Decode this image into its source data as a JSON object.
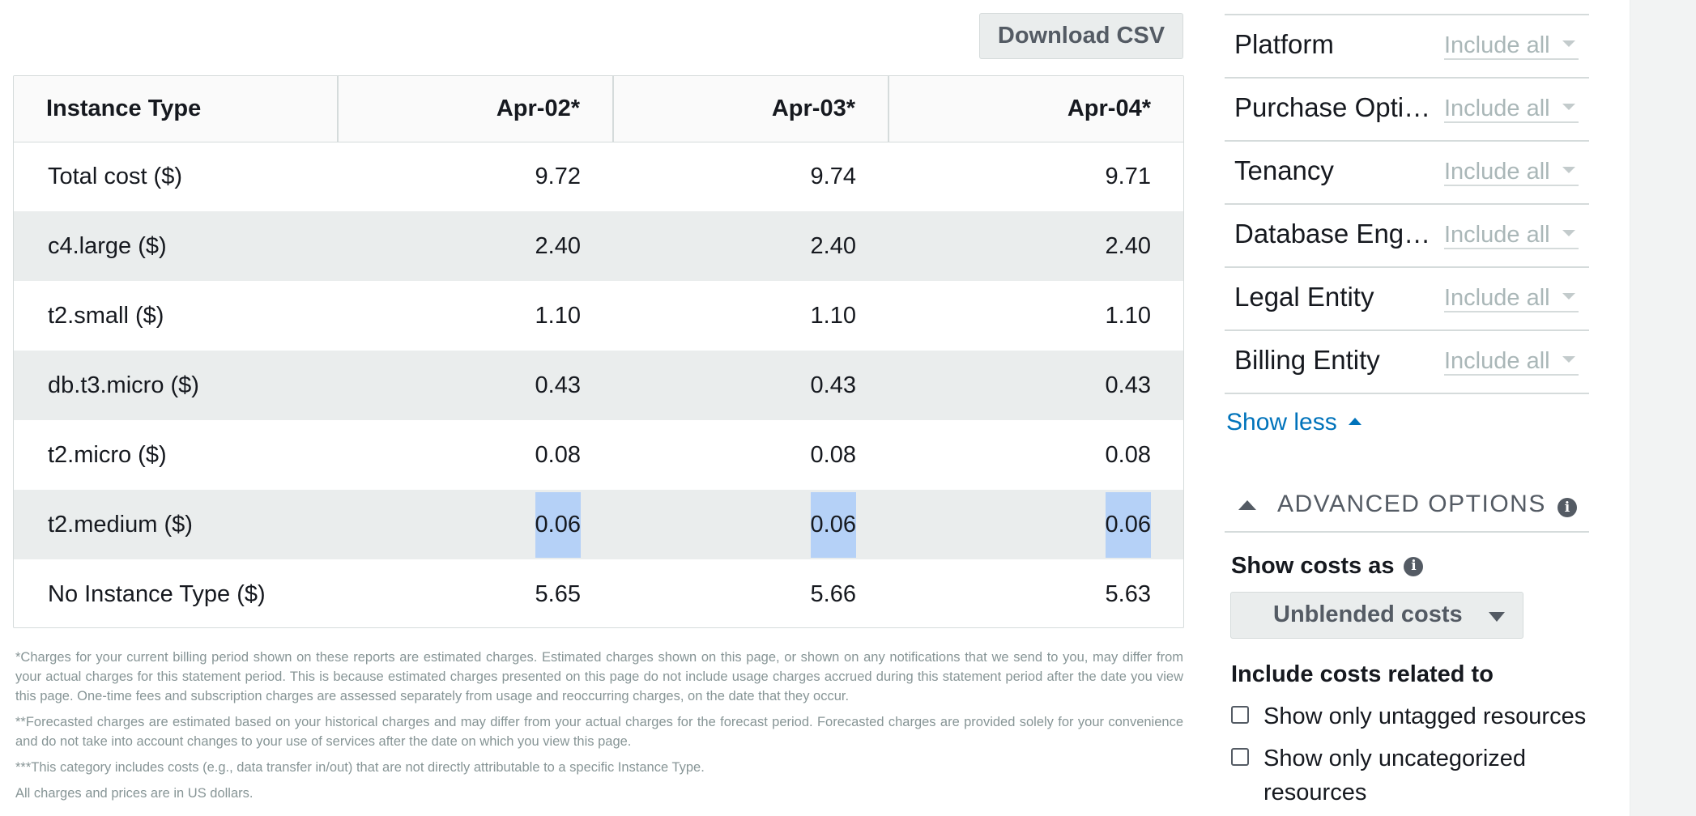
{
  "toolbar": {
    "download_label": "Download CSV"
  },
  "table": {
    "headers": [
      "Instance Type",
      "Apr-02*",
      "Apr-03*",
      "Apr-04*"
    ],
    "rows": [
      {
        "label": "Total cost ($)",
        "values": [
          "9.72",
          "9.74",
          "9.71"
        ]
      },
      {
        "label": "c4.large ($)",
        "values": [
          "2.40",
          "2.40",
          "2.40"
        ]
      },
      {
        "label": "t2.small ($)",
        "values": [
          "1.10",
          "1.10",
          "1.10"
        ]
      },
      {
        "label": "db.t3.micro ($)",
        "values": [
          "0.43",
          "0.43",
          "0.43"
        ]
      },
      {
        "label": "t2.micro ($)",
        "values": [
          "0.08",
          "0.08",
          "0.08"
        ]
      },
      {
        "label": "t2.medium ($)",
        "values": [
          "0.06",
          "0.06",
          "0.06"
        ]
      },
      {
        "label": "No Instance Type ($)",
        "values": [
          "5.65",
          "5.66",
          "5.63"
        ]
      }
    ]
  },
  "footnotes": {
    "n1": "*Charges for your current billing period shown on these reports are estimated charges. Estimated charges shown on this page, or shown on any notifications that we send to you, may differ from your actual charges for this statement period. This is because estimated charges presented on this page do not include usage charges accrued during this statement period after the date you view this page. One-time fees and subscription charges are assessed separately from usage and reoccurring charges, on the date that they occur.",
    "n2": "**Forecasted charges are estimated based on your historical charges and may differ from your actual charges for the forecast period. Forecasted charges are provided solely for your convenience and do not take into account changes to your use of services after the date on which you view this page.",
    "n3": "***This category includes costs (e.g., data transfer in/out) that are not directly attributable to a specific Instance Type.",
    "n4": "All charges and prices are in US dollars."
  },
  "filters": {
    "items": [
      {
        "name": "Platform",
        "value": "Include all"
      },
      {
        "name": "Purchase Option",
        "value": "Include all"
      },
      {
        "name": "Tenancy",
        "value": "Include all"
      },
      {
        "name": "Database Engine",
        "value": "Include all"
      },
      {
        "name": "Legal Entity",
        "value": "Include all"
      },
      {
        "name": "Billing Entity",
        "value": "Include all"
      }
    ],
    "show_less": "Show less"
  },
  "advanced": {
    "title": "ADVANCED OPTIONS",
    "show_costs_label": "Show costs as",
    "costs_value": "Unblended costs",
    "related_label": "Include costs related to",
    "checkboxes": [
      {
        "label": "Show only untagged resources",
        "checked": false
      },
      {
        "label": "Show only uncategorized resources",
        "checked": false
      }
    ]
  },
  "icons": {
    "info": "info-icon",
    "caret_down": "caret-down-icon",
    "caret_up": "caret-up-icon"
  },
  "colors": {
    "link": "#0073bb",
    "selection": "#b5d1f7",
    "row_stripe": "#eaeded",
    "muted_text": "#879596"
  }
}
